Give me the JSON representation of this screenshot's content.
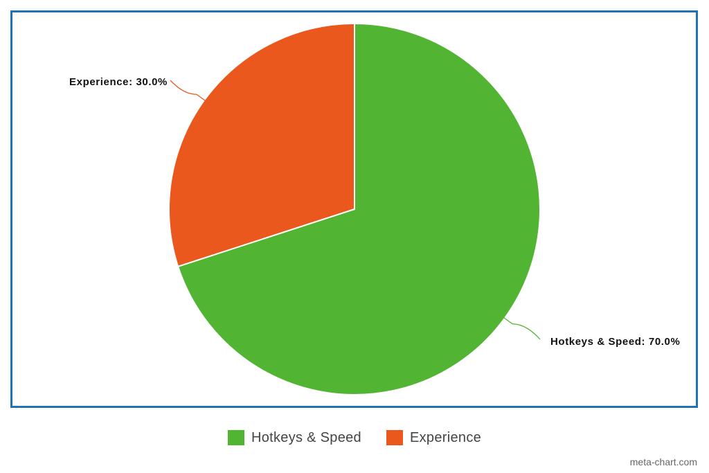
{
  "chart_data": {
    "type": "pie",
    "categories": [
      "Hotkeys & Speed",
      "Experience"
    ],
    "values": [
      70.0,
      30.0
    ],
    "unit": "%",
    "labels": [
      "Hotkeys & Speed: 70.0%",
      "Experience: 30.0%"
    ],
    "colors": [
      "#52b433",
      "#eb581e"
    ],
    "start_angle_deg": 0,
    "direction": "clockwise",
    "legend": {
      "placement": "bottom",
      "items": [
        {
          "label": "Hotkeys & Speed",
          "color": "#52b433"
        },
        {
          "label": "Experience",
          "color": "#eb581e"
        }
      ]
    },
    "frame_color": "#1d72b8"
  },
  "footer": {
    "credit": "meta-chart.com"
  }
}
